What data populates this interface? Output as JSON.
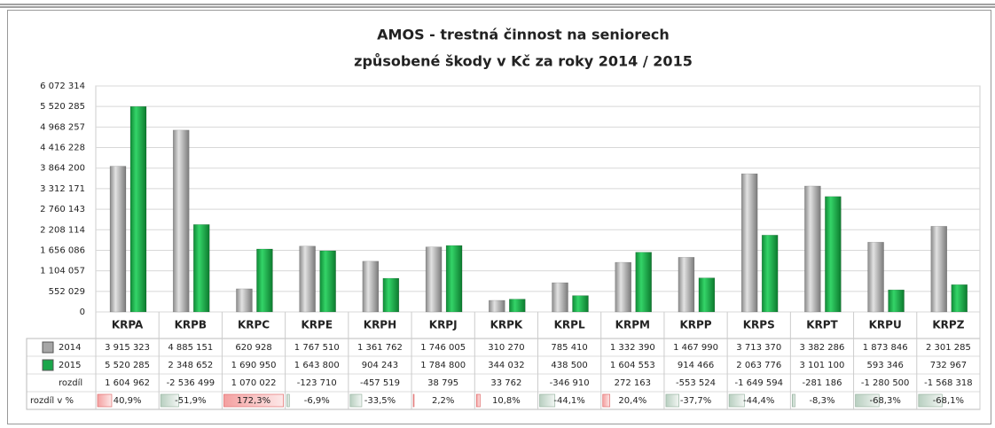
{
  "chart_data": {
    "type": "bar",
    "title": "AMOS - trestná činnost na seniorech",
    "subtitle": "způsobené škody v Kč za roky 2014 / 2015",
    "categories": [
      "KRPA",
      "KRPB",
      "KRPC",
      "KRPE",
      "KRPH",
      "KRPJ",
      "KRPK",
      "KRPL",
      "KRPM",
      "KRPP",
      "KRPS",
      "KRPT",
      "KRPU",
      "KRPZ"
    ],
    "series": [
      {
        "name": "2014",
        "color": "#a6a6a6",
        "values": [
          3915323,
          4885151,
          620928,
          1767510,
          1361762,
          1746005,
          310270,
          785410,
          1332390,
          1467990,
          3713370,
          3382286,
          1873846,
          2301285
        ],
        "value_labels": [
          "3 915 323",
          "4 885 151",
          "620 928",
          "1 767 510",
          "1 361 762",
          "1 746 005",
          "310 270",
          "785 410",
          "1 332 390",
          "1 467 990",
          "3 713 370",
          "3 382 286",
          "1 873 846",
          "2 301 285"
        ]
      },
      {
        "name": "2015",
        "color": "#1aa64a",
        "values": [
          5520285,
          2348652,
          1690950,
          1643800,
          904243,
          1784800,
          344032,
          438500,
          1604553,
          914466,
          2063776,
          3101100,
          593346,
          732967
        ],
        "value_labels": [
          "5 520 285",
          "2 348 652",
          "1 690 950",
          "1 643 800",
          "904 243",
          "1 784 800",
          "344 032",
          "438 500",
          "1 604 553",
          "914 466",
          "2 063 776",
          "3 101 100",
          "593 346",
          "732 967"
        ]
      }
    ],
    "rows": [
      {
        "name": "rozdíl",
        "values": [
          1604962,
          -2536499,
          1070022,
          -123710,
          -457519,
          38795,
          33762,
          -346910,
          272163,
          -553524,
          -1649594,
          -281186,
          -1280500,
          -1568318
        ],
        "value_labels": [
          "1 604 962",
          "-2 536 499",
          "1 070 022",
          "-123 710",
          "-457 519",
          "38 795",
          "33 762",
          "-346 910",
          "272 163",
          "-553 524",
          "-1 649 594",
          "-281 186",
          "-1 280 500",
          "-1 568 318"
        ]
      },
      {
        "name": "rozdíl v %",
        "values": [
          40.9,
          -51.9,
          172.3,
          -6.9,
          -33.5,
          2.2,
          10.8,
          -44.1,
          20.4,
          -37.7,
          -44.4,
          -8.3,
          -68.3,
          -68.1
        ],
        "value_labels": [
          "40,9%",
          "-51,9%",
          "172,3%",
          "-6,9%",
          "-33,5%",
          "2,2%",
          "10,8%",
          "-44,1%",
          "20,4%",
          "-37,7%",
          "-44,4%",
          "-8,3%",
          "-68,3%",
          "-68,1%"
        ]
      }
    ],
    "ylim": [
      0,
      6072314
    ],
    "yticks": [
      0,
      {
        "value": 552029,
        "label": "552 029"
      },
      {
        "value": 1104057,
        "label": "1 104 057"
      },
      {
        "value": 1656086,
        "label": "1 656 086"
      },
      {
        "value": 2208114,
        "label": "2 208 114"
      },
      {
        "value": 2760143,
        "label": "2 760 143"
      },
      {
        "value": 3312171,
        "label": "3 312 171"
      },
      {
        "value": 3864200,
        "label": "3 864 200"
      },
      {
        "value": 4416228,
        "label": "4 416 228"
      },
      {
        "value": 4968257,
        "label": "4 968 257"
      },
      {
        "value": 5520285,
        "label": "5 520 285"
      },
      {
        "value": 6072314,
        "label": "6 072 314"
      }
    ],
    "grid": true
  }
}
